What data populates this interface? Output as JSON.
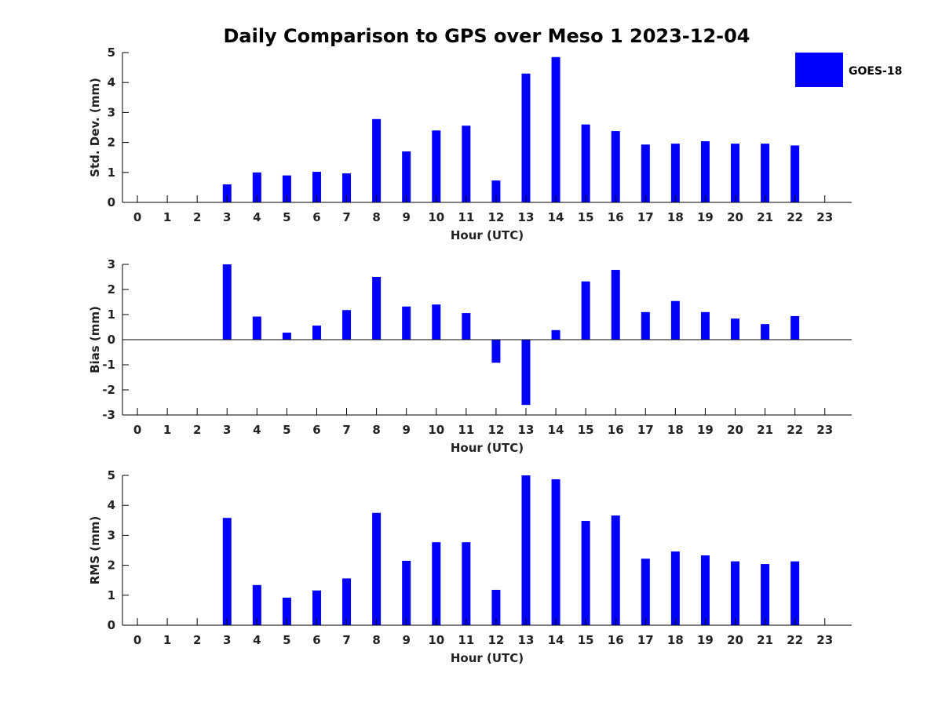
{
  "title": "Daily Comparison to GPS over Meso 1 2023-12-04",
  "legend": {
    "label": "GOES-18",
    "color": "#0000ff",
    "position": "top-right"
  },
  "chart_data": [
    {
      "type": "bar",
      "categories": [
        "0",
        "1",
        "2",
        "3",
        "4",
        "5",
        "6",
        "7",
        "8",
        "9",
        "10",
        "11",
        "12",
        "13",
        "14",
        "15",
        "16",
        "17",
        "18",
        "19",
        "20",
        "21",
        "22",
        "23"
      ],
      "series": [
        {
          "name": "GOES-18",
          "values": [
            null,
            null,
            null,
            0.6,
            1.0,
            0.9,
            1.02,
            0.97,
            2.78,
            1.7,
            2.4,
            2.56,
            0.73,
            4.3,
            4.85,
            2.6,
            2.38,
            1.93,
            1.96,
            2.04,
            1.96,
            1.96,
            1.9,
            null
          ]
        }
      ],
      "xlabel": "Hour (UTC)",
      "ylabel": "Std. Dev. (mm)",
      "ylim": [
        0,
        5
      ],
      "yticks": [
        0,
        1,
        2,
        3,
        4,
        5
      ],
      "grid": false,
      "color": "#0000ff"
    },
    {
      "type": "bar",
      "categories": [
        "0",
        "1",
        "2",
        "3",
        "4",
        "5",
        "6",
        "7",
        "8",
        "9",
        "10",
        "11",
        "12",
        "13",
        "14",
        "15",
        "16",
        "17",
        "18",
        "19",
        "20",
        "21",
        "22",
        "23"
      ],
      "series": [
        {
          "name": "GOES-18",
          "values": [
            null,
            null,
            null,
            3.0,
            0.92,
            0.28,
            0.56,
            1.18,
            2.5,
            1.32,
            1.4,
            1.06,
            -0.92,
            -2.6,
            0.38,
            2.32,
            2.78,
            1.1,
            1.54,
            1.1,
            0.84,
            0.62,
            0.94,
            null
          ]
        }
      ],
      "xlabel": "Hour (UTC)",
      "ylabel": "Bias (mm)",
      "ylim": [
        -3,
        3
      ],
      "yticks": [
        -3,
        -2,
        -1,
        0,
        1,
        2,
        3
      ],
      "grid": false,
      "zero_line": true,
      "color": "#0000ff"
    },
    {
      "type": "bar",
      "categories": [
        "0",
        "1",
        "2",
        "3",
        "4",
        "5",
        "6",
        "7",
        "8",
        "9",
        "10",
        "11",
        "12",
        "13",
        "14",
        "15",
        "16",
        "17",
        "18",
        "19",
        "20",
        "21",
        "22",
        "23"
      ],
      "series": [
        {
          "name": "GOES-18",
          "values": [
            null,
            null,
            null,
            3.58,
            1.34,
            0.92,
            1.16,
            1.56,
            3.75,
            2.15,
            2.77,
            2.77,
            1.18,
            5.0,
            4.87,
            3.48,
            3.66,
            2.22,
            2.46,
            2.33,
            2.13,
            2.04,
            2.13,
            null
          ]
        }
      ],
      "xlabel": "Hour (UTC)",
      "ylabel": "RMS (mm)",
      "ylim": [
        0,
        5
      ],
      "yticks": [
        0,
        1,
        2,
        3,
        4,
        5
      ],
      "grid": false,
      "color": "#0000ff"
    }
  ]
}
